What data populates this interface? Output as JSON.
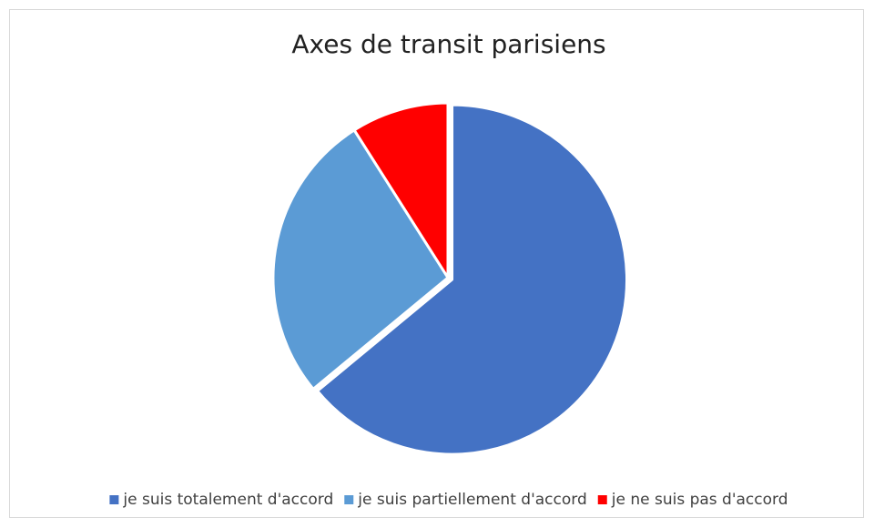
{
  "chart_data": {
    "type": "pie",
    "title": "Axes de transit parisiens",
    "categories": [
      "je suis totalement d'accord",
      "je suis partiellement d'accord",
      "je ne suis pas d'accord"
    ],
    "values": [
      64,
      27,
      9
    ],
    "colors": [
      "#4472c4",
      "#5b9bd5",
      "#ff0000"
    ]
  }
}
